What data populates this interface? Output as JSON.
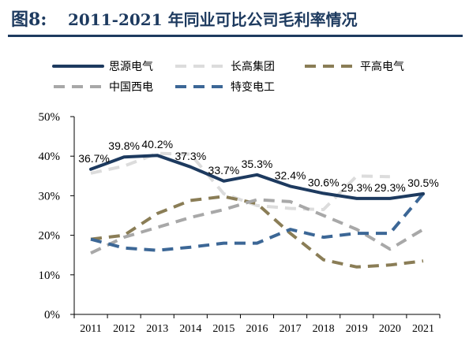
{
  "header": {
    "prefix": "图8:",
    "title": "2011-2021 年同业可比公司毛利率情况"
  },
  "chart_data": {
    "type": "line",
    "title": "2011-2021 年同业可比公司毛利率情况",
    "x": [
      "2011",
      "2012",
      "2013",
      "2014",
      "2015",
      "2016",
      "2017",
      "2018",
      "2019",
      "2020",
      "2021"
    ],
    "ylim": [
      0,
      50
    ],
    "yticks": [
      "0%",
      "10%",
      "20%",
      "30%",
      "40%",
      "50%"
    ],
    "grid": false,
    "legend_position": "top",
    "series": [
      {
        "name": "思源电气",
        "color": "#1d3a5f",
        "dash": "solid",
        "width": 4,
        "values": [
          36.7,
          39.8,
          40.2,
          37.3,
          33.7,
          35.3,
          32.4,
          30.6,
          29.3,
          29.3,
          30.5
        ],
        "labels": [
          "36.7%",
          "39.8%",
          "40.2%",
          "37.3%",
          "33.7%",
          "35.3%",
          "32.4%",
          "30.6%",
          "29.3%",
          "29.3%",
          "30.5%"
        ]
      },
      {
        "name": "长高集团",
        "color": "#dcdcdc",
        "dash": "dashed",
        "width": 4,
        "values": [
          35.7,
          37.5,
          40.7,
          40.5,
          30.5,
          27.5,
          26.8,
          26.5,
          35.0,
          34.8,
          null
        ]
      },
      {
        "name": "平高电气",
        "color": "#8a7d56",
        "dash": "dashed",
        "width": 4,
        "values": [
          19.0,
          20.0,
          25.5,
          28.8,
          29.8,
          28.0,
          20.5,
          13.8,
          12.0,
          12.5,
          13.5
        ]
      },
      {
        "name": "中国西电",
        "color": "#a8a8a8",
        "dash": "dashed",
        "width": 4,
        "values": [
          15.5,
          19.5,
          22.0,
          24.5,
          26.5,
          29.0,
          28.5,
          25.0,
          21.5,
          16.5,
          21.5
        ]
      },
      {
        "name": "特变电工",
        "color": "#3c6796",
        "dash": "dashed",
        "width": 4,
        "values": [
          19.0,
          16.8,
          16.2,
          17.0,
          18.0,
          18.0,
          21.5,
          19.5,
          20.5,
          20.5,
          30.5
        ]
      }
    ]
  }
}
